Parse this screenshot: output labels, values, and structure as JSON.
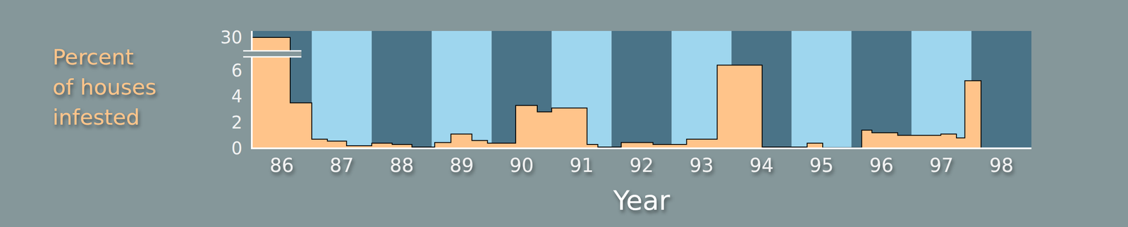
{
  "chart_data": {
    "type": "area",
    "line_style": "step",
    "color": "#ffc48a",
    "y_label": "Percent\nof houses\ninfested",
    "x_label": "Year",
    "x": [
      85.5,
      86.14,
      86.5,
      86.76,
      87.08,
      87.5,
      87.84,
      88.17,
      88.55,
      88.82,
      89.17,
      89.43,
      89.9,
      90.26,
      90.5,
      91.09,
      91.27,
      91.66,
      92.19,
      92.75,
      93.26,
      94.01,
      94.76,
      95.02,
      95.67,
      95.84,
      96.27,
      96.99,
      97.25,
      97.39,
      97.66
    ],
    "values": [
      30,
      3.5,
      0.7,
      0.55,
      0.2,
      0.4,
      0.3,
      0.1,
      0.45,
      1.1,
      0.6,
      0.4,
      3.3,
      2.8,
      3.1,
      0.3,
      0.1,
      0.45,
      0.3,
      0.7,
      6.4,
      0.1,
      0.4,
      0.05,
      1.4,
      1.2,
      1.0,
      1.1,
      0.8,
      5.2,
      0
    ],
    "xlim": [
      85.5,
      98.5
    ],
    "xticks": [
      86,
      87,
      88,
      89,
      90,
      91,
      92,
      93,
      94,
      95,
      96,
      97,
      98
    ],
    "ylim": [
      0,
      30.5
    ],
    "yticks": [
      0,
      2,
      4,
      6,
      30
    ],
    "grid": false
  }
}
